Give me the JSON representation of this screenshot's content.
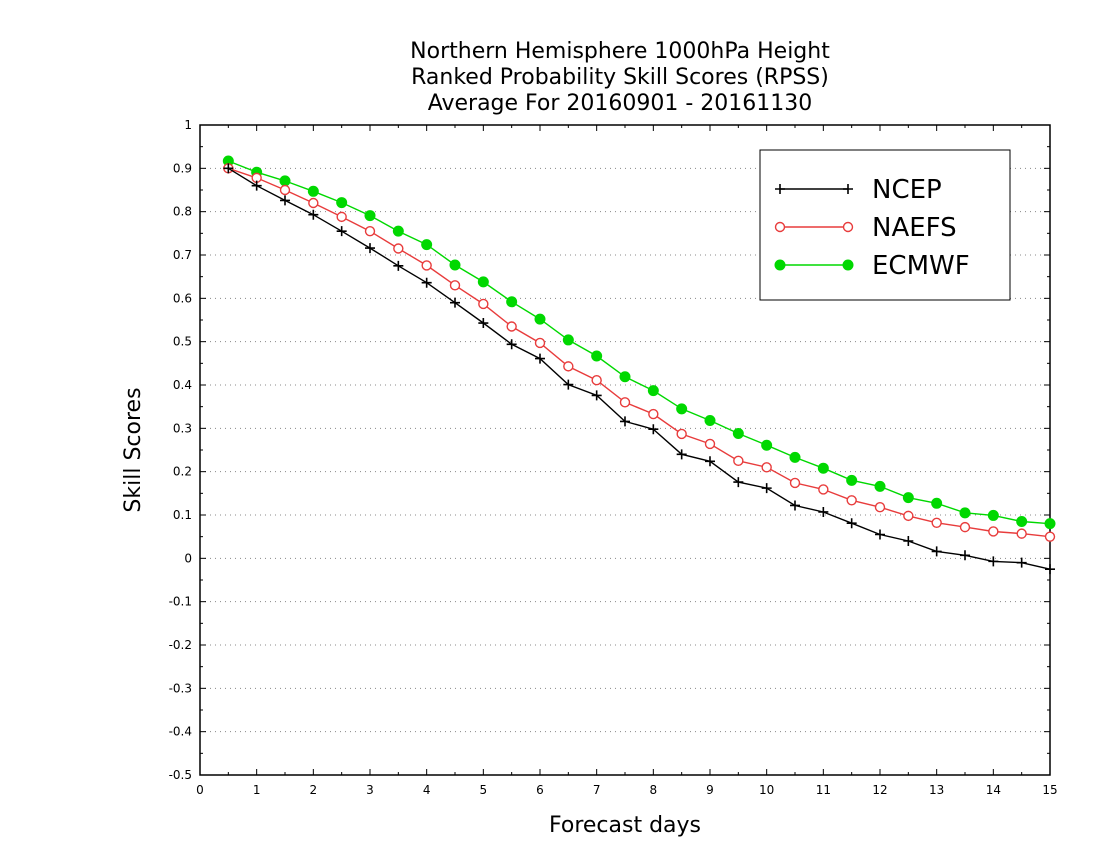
{
  "chart_data": {
    "type": "line",
    "title_lines": [
      "Northern Hemisphere 1000hPa Height",
      "Ranked Probability Skill Scores (RPSS)",
      "Average For 20160901 - 20161130"
    ],
    "xlabel": "Forecast days",
    "ylabel": "Skill Scores",
    "xlim": [
      0,
      15
    ],
    "ylim": [
      -0.5,
      1
    ],
    "x_ticks": [
      "0",
      "1",
      "2",
      "3",
      "4",
      "5",
      "6",
      "7",
      "8",
      "9",
      "10",
      "11",
      "12",
      "13",
      "14",
      "15"
    ],
    "y_ticks": [
      "1",
      "0.9",
      "0.8",
      "0.7",
      "0.6",
      "0.5",
      "0.4",
      "0.3",
      "0.2",
      "0.1",
      "0",
      "-0.1",
      "-0.2",
      "-0.3",
      "-0.4",
      "-0.5"
    ],
    "grid": "horizontal dotted",
    "legend_position": "top-right",
    "x": [
      0.5,
      1,
      1.5,
      2,
      2.5,
      3,
      3.5,
      4,
      4.5,
      5,
      5.5,
      6,
      6.5,
      7,
      7.5,
      8,
      8.5,
      9,
      9.5,
      10,
      10.5,
      11,
      11.5,
      12,
      12.5,
      13,
      13.5,
      14,
      14.5,
      15
    ],
    "series": [
      {
        "name": "NCEP",
        "color": "#000000",
        "marker": "plus",
        "values": [
          0.9,
          0.86,
          0.826,
          0.793,
          0.755,
          0.716,
          0.675,
          0.636,
          0.59,
          0.543,
          0.494,
          0.461,
          0.401,
          0.376,
          0.316,
          0.298,
          0.24,
          0.224,
          0.176,
          0.162,
          0.122,
          0.107,
          0.081,
          0.055,
          0.04,
          0.016,
          0.007,
          -0.007,
          -0.01,
          -0.025
        ]
      },
      {
        "name": "NAEFS",
        "color": "#e83c3c",
        "marker": "open-circle",
        "values": [
          0.9,
          0.878,
          0.85,
          0.82,
          0.788,
          0.755,
          0.715,
          0.676,
          0.63,
          0.587,
          0.535,
          0.497,
          0.443,
          0.411,
          0.36,
          0.333,
          0.287,
          0.264,
          0.225,
          0.21,
          0.174,
          0.159,
          0.134,
          0.118,
          0.098,
          0.082,
          0.072,
          0.062,
          0.057,
          0.05
        ]
      },
      {
        "name": "ECMWF",
        "color": "#00d800",
        "marker": "filled-circle",
        "values": [
          0.917,
          0.891,
          0.871,
          0.847,
          0.821,
          0.791,
          0.755,
          0.724,
          0.677,
          0.638,
          0.592,
          0.552,
          0.504,
          0.467,
          0.419,
          0.387,
          0.345,
          0.318,
          0.288,
          0.261,
          0.233,
          0.208,
          0.18,
          0.166,
          0.14,
          0.127,
          0.105,
          0.099,
          0.085,
          0.08
        ]
      }
    ]
  }
}
